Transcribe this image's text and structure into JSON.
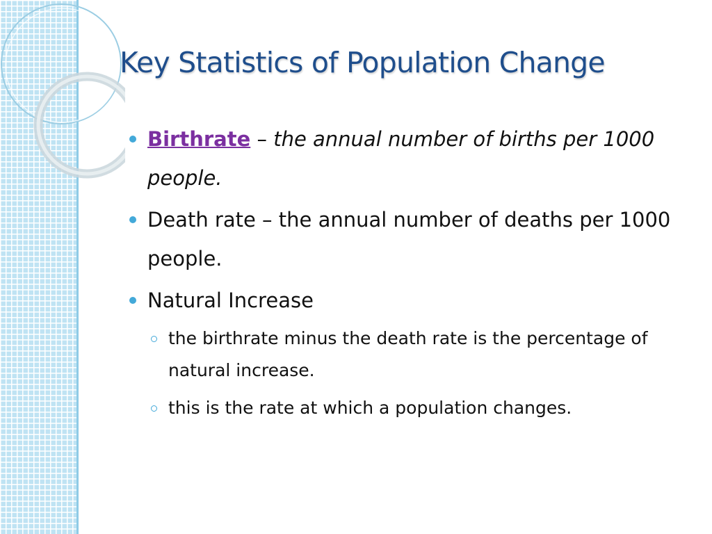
{
  "slide": {
    "title": "Key Statistics of Population Change",
    "bullets": {
      "birthrate_term": "Birthrate",
      "birthrate_dash": " – ",
      "birthrate_definition": "the annual number of births per 1000 people.",
      "death_rate": "Death rate – the annual number of deaths per 1000 people.",
      "natural_increase": "Natural Increase",
      "sub_1": "the birthrate minus the death rate is the percentage of natural increase.",
      "sub_2": "this is the rate at which a population changes."
    }
  },
  "colors": {
    "title": "#1f4e8c",
    "bullet": "#43a9d9",
    "term_link": "#7b2fa0",
    "sidebar": "#bfe3f3"
  }
}
